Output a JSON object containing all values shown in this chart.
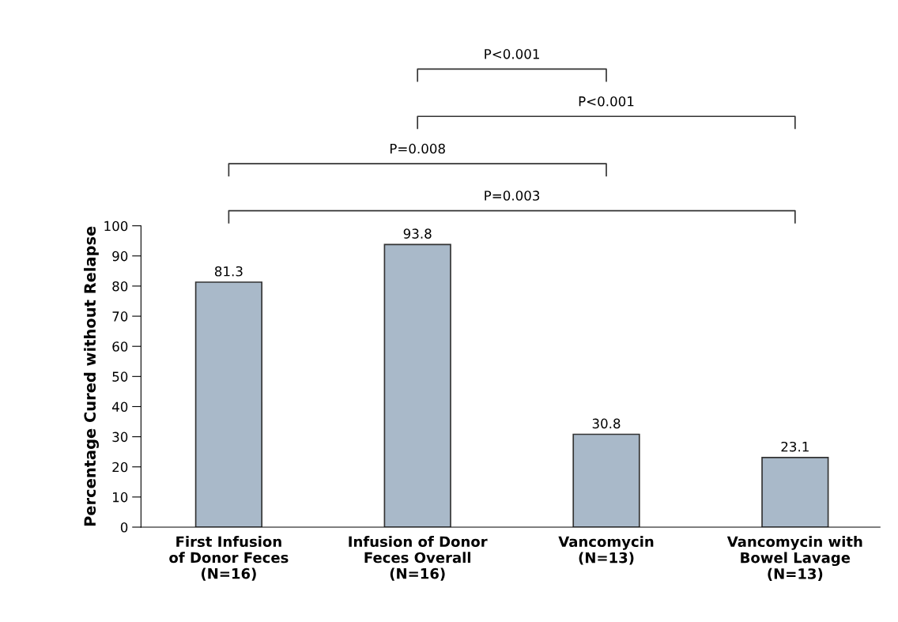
{
  "chart_data": {
    "type": "bar",
    "ylabel": "Percentage Cured without Relapse",
    "categories": [
      "First Infusion\nof Donor Feces\n(N=16)",
      "Infusion of Donor\nFeces Overall\n(N=16)",
      "Vancomycin\n(N=13)",
      "Vancomycin with\nBowel Lavage\n(N=13)"
    ],
    "values": [
      81.3,
      93.8,
      30.8,
      23.1
    ],
    "color": "#a9b9c9",
    "data_labels": true,
    "ylim": [
      0,
      100
    ],
    "yticks": [
      0,
      10,
      20,
      30,
      40,
      50,
      60,
      70,
      80,
      90,
      100
    ],
    "grid": false,
    "legend": false,
    "annotations": [
      "P<0.001",
      "P<0.001",
      "P=0.008",
      "P=0.003"
    ]
  }
}
